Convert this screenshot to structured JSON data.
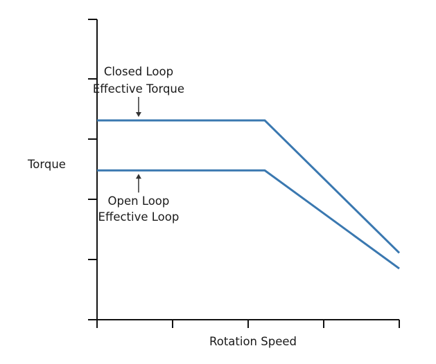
{
  "chart_data": {
    "type": "line",
    "xlabel": "Rotation Speed",
    "ylabel": "Torque",
    "xlim": [
      0,
      4
    ],
    "ylim": [
      0,
      5
    ],
    "x_ticks": [
      0,
      1,
      2,
      3,
      4
    ],
    "y_ticks": [
      0,
      1,
      2,
      3,
      4
    ],
    "grid": false,
    "line_color": "#3a78b0",
    "series": [
      {
        "x": [
          0,
          2.22,
          4
        ],
        "y": [
          3.31,
          3.31,
          1.11
        ]
      },
      {
        "x": [
          0,
          2.22,
          4
        ],
        "y": [
          2.48,
          2.48,
          0.85
        ]
      }
    ],
    "annotations": [
      {
        "lines": [
          "Closed Loop",
          "Effective Torque"
        ],
        "arrow": "down",
        "target_series": 0,
        "x": 0.55
      },
      {
        "lines": [
          "Open Loop",
          "Effective Loop"
        ],
        "arrow": "up",
        "target_series": 1,
        "x": 0.55
      }
    ]
  }
}
